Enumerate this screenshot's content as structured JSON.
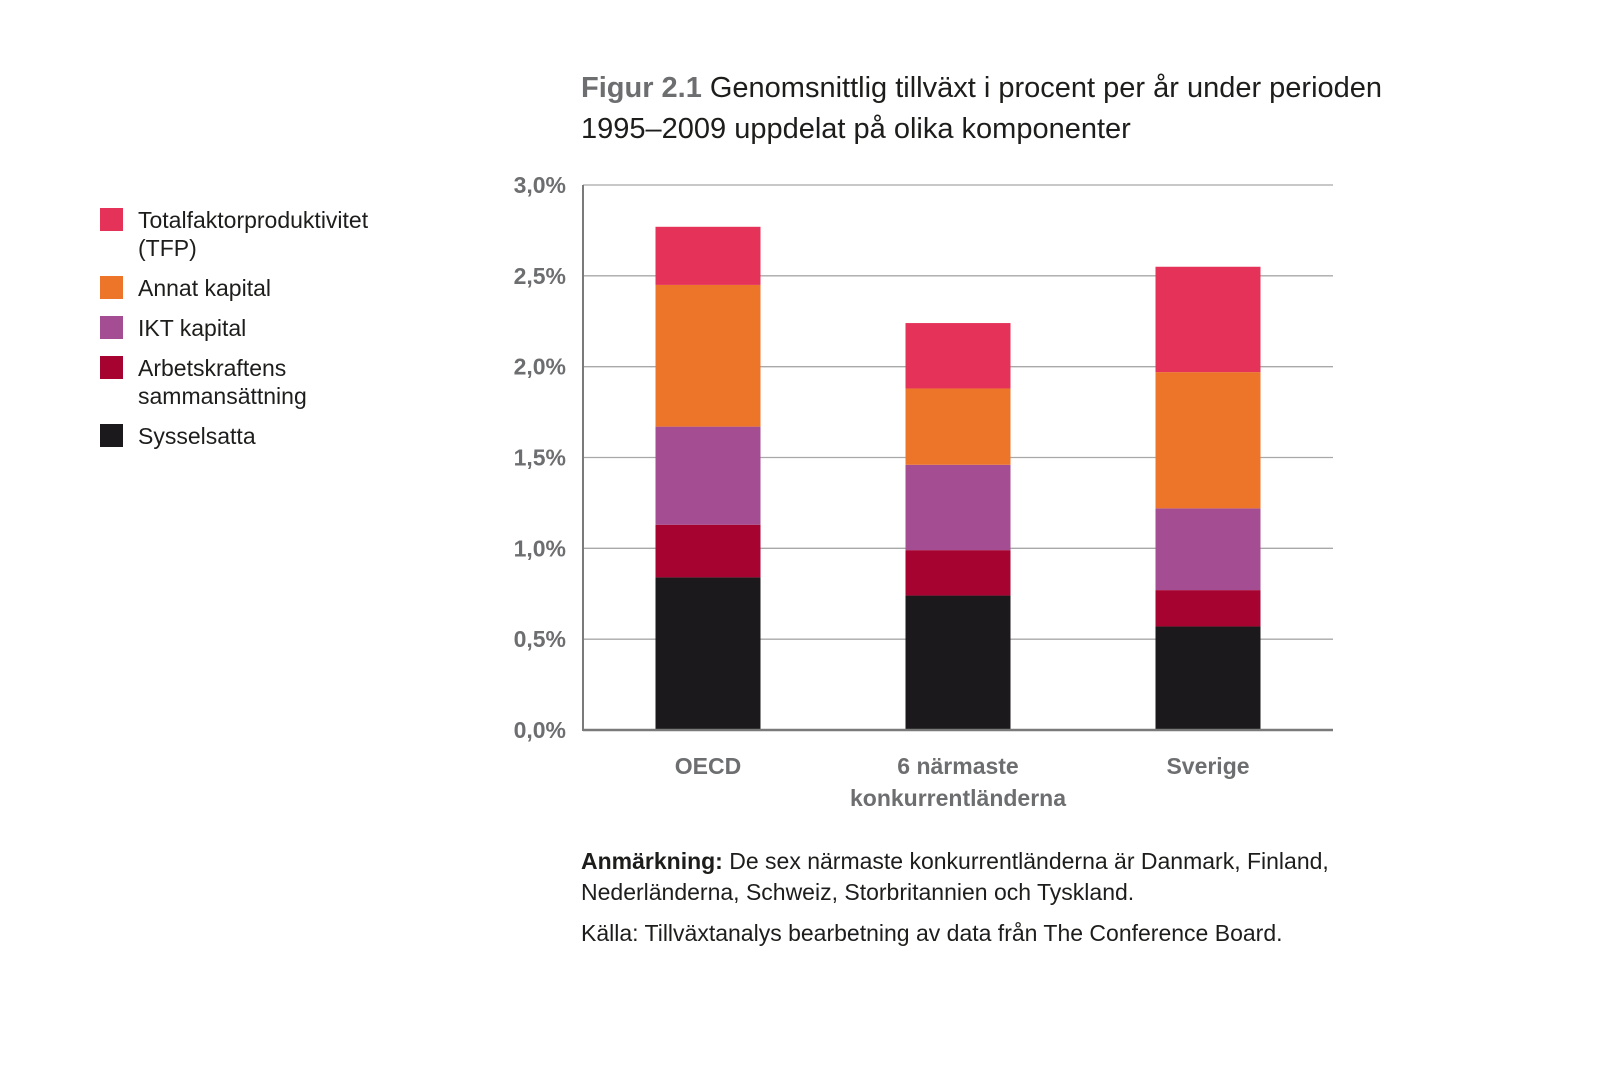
{
  "title": {
    "label": "Figur 2.1",
    "text": "Genomsnittlig tillväxt i procent per år under perioden 1995–2009 uppdelat på olika komponenter"
  },
  "chart_data": {
    "type": "bar",
    "stacked": true,
    "categories": [
      "OECD",
      "6 närmaste konkurrentländerna",
      "Sverige"
    ],
    "category_lines": [
      [
        "OECD"
      ],
      [
        "6 närmaste",
        "konkurrentländerna"
      ],
      [
        "Sverige"
      ]
    ],
    "series": [
      {
        "name": "Sysselsatta",
        "color": "#1b191b",
        "values": [
          0.84,
          0.74,
          0.57
        ]
      },
      {
        "name": "Arbetskraftens sammansättning",
        "color": "#a60331",
        "values": [
          0.29,
          0.25,
          0.2
        ]
      },
      {
        "name": "IKT kapital",
        "color": "#a54d92",
        "values": [
          0.54,
          0.47,
          0.45
        ]
      },
      {
        "name": "Annat kapital",
        "color": "#ec7529",
        "values": [
          0.78,
          0.42,
          0.75
        ]
      },
      {
        "name": "Totalfaktorproduktivitet (TFP)",
        "color": "#e43258",
        "values": [
          0.32,
          0.36,
          0.58
        ]
      }
    ],
    "ylim": [
      0,
      3.0
    ],
    "yticks": [
      0,
      0.5,
      1.0,
      1.5,
      2.0,
      2.5,
      3.0
    ],
    "ytick_labels": [
      "0,0%",
      "0,5%",
      "1,0%",
      "1,5%",
      "2,0%",
      "2,5%",
      "3,0%"
    ],
    "xlabel": "",
    "ylabel": "",
    "grid": true,
    "legend_position": "left"
  },
  "legend": [
    {
      "label": "Totalfaktorproduktivitet (TFP)",
      "color": "#e43258"
    },
    {
      "label": "Annat kapital",
      "color": "#ec7529"
    },
    {
      "label": "IKT kapital",
      "color": "#a54d92"
    },
    {
      "label": "Arbetskraftens sammansättning",
      "color": "#a60331"
    },
    {
      "label": "Sysselsatta",
      "color": "#1b191b"
    }
  ],
  "note": {
    "label": "Anmärkning:",
    "text": "De sex närmaste konkurrentländerna är Danmark, Finland, Nederländerna, Schweiz, Storbritannien och Tyskland."
  },
  "source": "Källa: Tillväxtanalys bearbetning av data från The Conference Board."
}
